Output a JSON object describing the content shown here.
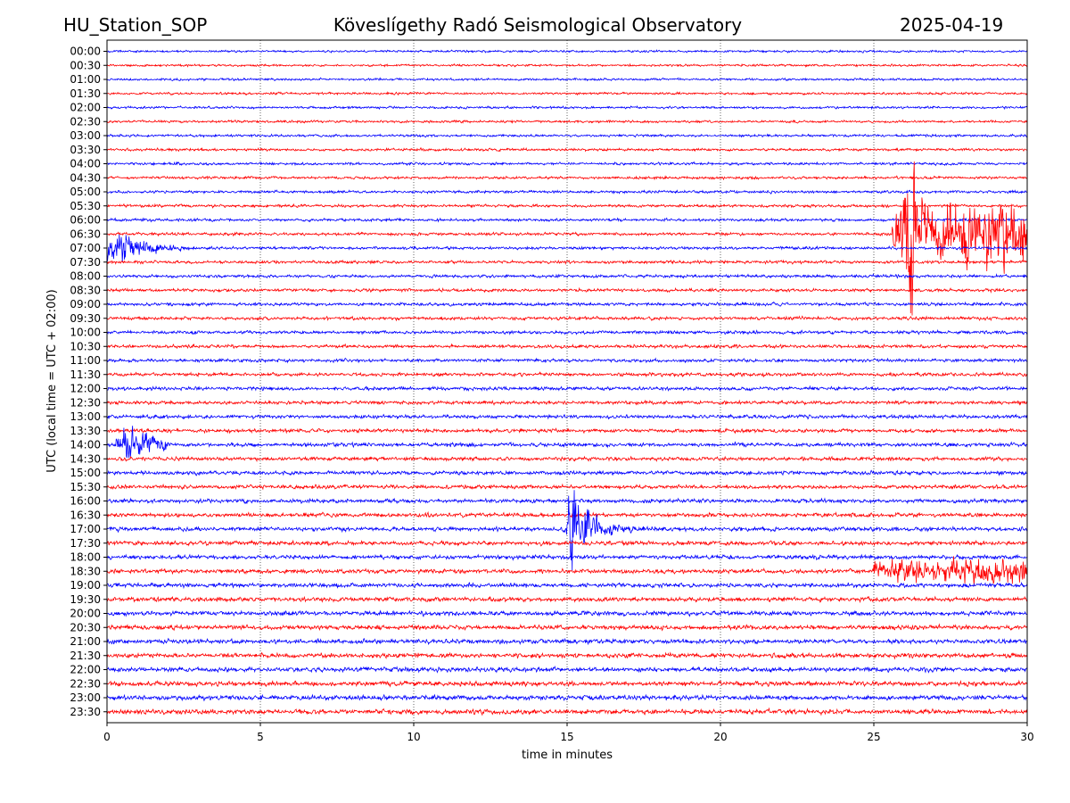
{
  "header": {
    "station": "HU_Station_SOP",
    "title": "Köveslígethy Radó Seismological Observatory",
    "date": "2025-04-19"
  },
  "chart_data": {
    "type": "line",
    "title": "Köveslígethy Radó Seismological Observatory",
    "xlabel": "time in minutes",
    "ylabel": "UTC (local time = UTC + 02:00)",
    "xlim": [
      0,
      30
    ],
    "x_ticks": [
      "0",
      "5",
      "10",
      "15",
      "20",
      "25",
      "30"
    ],
    "x_tick_values": [
      0,
      5,
      10,
      15,
      20,
      25,
      30
    ],
    "grid": "vertical dotted at x ticks",
    "trace_colors": [
      "#0000ff",
      "#ff0000"
    ],
    "rows": [
      "00:00",
      "00:30",
      "01:00",
      "01:30",
      "02:00",
      "02:30",
      "03:00",
      "03:30",
      "04:00",
      "04:30",
      "05:00",
      "05:30",
      "06:00",
      "06:30",
      "07:00",
      "07:30",
      "08:00",
      "08:30",
      "09:00",
      "09:30",
      "10:00",
      "10:30",
      "11:00",
      "11:30",
      "12:00",
      "12:30",
      "13:00",
      "13:30",
      "14:00",
      "14:30",
      "15:00",
      "15:30",
      "16:00",
      "16:30",
      "17:00",
      "17:30",
      "18:00",
      "18:30",
      "19:00",
      "19:30",
      "20:00",
      "20:30",
      "21:00",
      "21:30",
      "22:00",
      "22:30",
      "23:00",
      "23:30"
    ],
    "events": [
      {
        "row": "06:30",
        "start_min": 25.6,
        "end_min": 30,
        "peak_min": 26.2,
        "amplitude": 1.0,
        "kind": "sustained"
      },
      {
        "row": "07:00",
        "start_min": 0,
        "end_min": 3.0,
        "peak_min": 0.3,
        "amplitude": 0.25,
        "kind": "coda"
      },
      {
        "row": "14:00",
        "start_min": 0.3,
        "end_min": 2.0,
        "peak_min": 0.5,
        "amplitude": 0.3,
        "kind": "coda"
      },
      {
        "row": "17:00",
        "start_min": 14.8,
        "end_min": 18.0,
        "peak_min": 15.05,
        "amplitude": 0.85,
        "kind": "quake"
      },
      {
        "row": "18:30",
        "start_min": 25.0,
        "end_min": 30,
        "peak_min": 27.5,
        "amplitude": 0.12,
        "kind": "noise"
      }
    ]
  }
}
